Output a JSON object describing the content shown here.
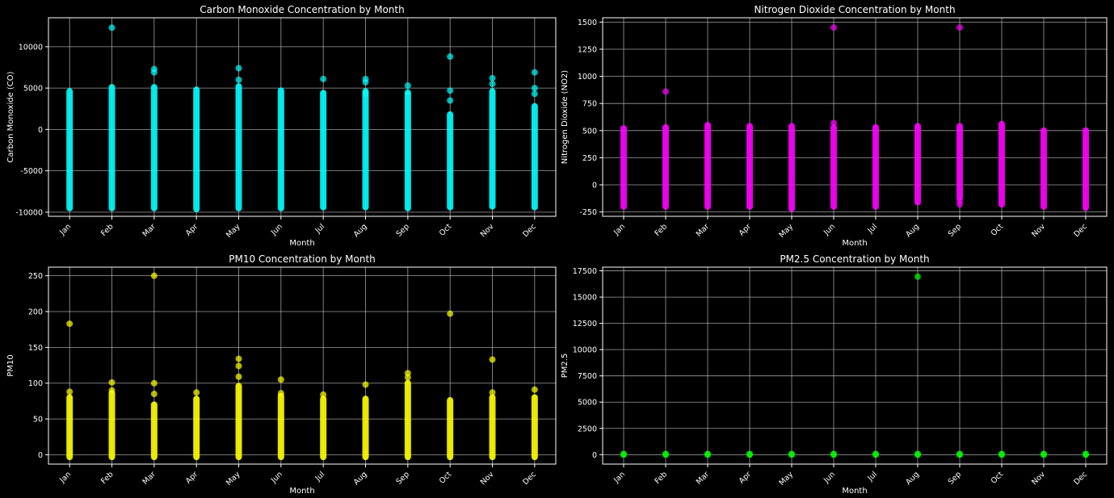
{
  "chart_data": [
    {
      "type": "scatter",
      "title": "Carbon Monoxide Concentration by Month",
      "xlabel": "Month",
      "ylabel": "Carbon Monoxide (CO)",
      "categories": [
        "Jan",
        "Feb",
        "Mar",
        "Apr",
        "May",
        "Jun",
        "Jul",
        "Aug",
        "Sep",
        "Oct",
        "Nov",
        "Dec"
      ],
      "ylim": [
        -10500,
        13500
      ],
      "yticks": [
        -10000,
        -5000,
        0,
        5000,
        10000
      ],
      "color": "#00ffff",
      "grid": true,
      "series": [
        {
          "ranges": [
            [
              -9500,
              4600
            ],
            [
              -9500,
              5100
            ],
            [
              -9500,
              5100
            ],
            [
              -9600,
              4800
            ],
            [
              -9500,
              5200
            ],
            [
              -9500,
              4700
            ],
            [
              -9400,
              4400
            ],
            [
              -9400,
              4600
            ],
            [
              -9500,
              4300
            ],
            [
              -9400,
              1800
            ],
            [
              -9300,
              4600
            ],
            [
              -9400,
              2800
            ]
          ],
          "outliers": [
            [
              1,
              12300
            ],
            [
              2,
              7300
            ],
            [
              2,
              6900
            ],
            [
              4,
              7400
            ],
            [
              4,
              6000
            ],
            [
              6,
              6100
            ],
            [
              7,
              6100
            ],
            [
              7,
              5700
            ],
            [
              7,
              4300
            ],
            [
              8,
              5300
            ],
            [
              8,
              4500
            ],
            [
              9,
              8800
            ],
            [
              9,
              4700
            ],
            [
              9,
              3500
            ],
            [
              10,
              6200
            ],
            [
              10,
              5500
            ],
            [
              11,
              6900
            ],
            [
              11,
              5000
            ],
            [
              11,
              4300
            ]
          ]
        }
      ]
    },
    {
      "type": "scatter",
      "title": "Nitrogen Dioxide Concentration by Month",
      "xlabel": "Month",
      "ylabel": "Nitrogen Dioxide (NO2)",
      "categories": [
        "Jan",
        "Feb",
        "Mar",
        "Apr",
        "May",
        "Jun",
        "Jul",
        "Aug",
        "Sep",
        "Oct",
        "Nov",
        "Dec"
      ],
      "ylim": [
        -290,
        1540
      ],
      "yticks": [
        -250,
        0,
        250,
        500,
        750,
        1000,
        1250,
        1500
      ],
      "color": "#ff00ff",
      "grid": true,
      "series": [
        {
          "ranges": [
            [
              -200,
              520
            ],
            [
              -200,
              530
            ],
            [
              -200,
              550
            ],
            [
              -200,
              540
            ],
            [
              -220,
              540
            ],
            [
              -200,
              530
            ],
            [
              -200,
              530
            ],
            [
              -160,
              540
            ],
            [
              -120,
              540
            ],
            [
              -180,
              560
            ],
            [
              -200,
              500
            ],
            [
              -210,
              500
            ]
          ],
          "outliers": [
            [
              1,
              860
            ],
            [
              5,
              1450
            ],
            [
              5,
              570
            ],
            [
              8,
              1450
            ],
            [
              8,
              -150
            ],
            [
              8,
              -180
            ]
          ]
        }
      ]
    },
    {
      "type": "scatter",
      "title": "PM10 Concentration by Month",
      "xlabel": "Month",
      "ylabel": "PM10",
      "categories": [
        "Jan",
        "Feb",
        "Mar",
        "Apr",
        "May",
        "Jun",
        "Jul",
        "Aug",
        "Sep",
        "Oct",
        "Nov",
        "Dec"
      ],
      "ylim": [
        -13,
        262
      ],
      "yticks": [
        0,
        50,
        100,
        150,
        200,
        250
      ],
      "color": "#ffff00",
      "grid": true,
      "series": [
        {
          "ranges": [
            [
              -3,
              80
            ],
            [
              -3,
              86
            ],
            [
              -3,
              70
            ],
            [
              -3,
              78
            ],
            [
              -3,
              96
            ],
            [
              -3,
              82
            ],
            [
              -3,
              78
            ],
            [
              -3,
              78
            ],
            [
              -3,
              100
            ],
            [
              -3,
              76
            ],
            [
              -3,
              80
            ],
            [
              -3,
              80
            ]
          ],
          "outliers": [
            [
              0,
              183
            ],
            [
              0,
              88
            ],
            [
              1,
              101
            ],
            [
              1,
              90
            ],
            [
              2,
              250
            ],
            [
              2,
              100
            ],
            [
              2,
              85
            ],
            [
              3,
              87
            ],
            [
              4,
              134
            ],
            [
              4,
              124
            ],
            [
              4,
              109
            ],
            [
              5,
              105
            ],
            [
              5,
              86
            ],
            [
              6,
              84
            ],
            [
              7,
              98
            ],
            [
              8,
              114
            ],
            [
              8,
              108
            ],
            [
              9,
              197
            ],
            [
              10,
              133
            ],
            [
              10,
              87
            ],
            [
              11,
              91
            ]
          ]
        }
      ]
    },
    {
      "type": "scatter",
      "title": "PM2.5 Concentration by Month",
      "xlabel": "Month",
      "ylabel": "PM2.5",
      "categories": [
        "Jan",
        "Feb",
        "Mar",
        "Apr",
        "May",
        "Jun",
        "Jul",
        "Aug",
        "Sep",
        "Oct",
        "Nov",
        "Dec"
      ],
      "ylim": [
        -900,
        17850
      ],
      "yticks": [
        0,
        2500,
        5000,
        7500,
        10000,
        12500,
        15000,
        17500
      ],
      "color": "#00ff00",
      "grid": true,
      "series": [
        {
          "ranges": [
            [
              0,
              60
            ],
            [
              0,
              60
            ],
            [
              0,
              60
            ],
            [
              0,
              60
            ],
            [
              0,
              60
            ],
            [
              0,
              60
            ],
            [
              0,
              60
            ],
            [
              0,
              60
            ],
            [
              0,
              60
            ],
            [
              0,
              60
            ],
            [
              0,
              60
            ],
            [
              0,
              60
            ]
          ],
          "outliers": [
            [
              7,
              16950
            ]
          ]
        }
      ]
    }
  ]
}
